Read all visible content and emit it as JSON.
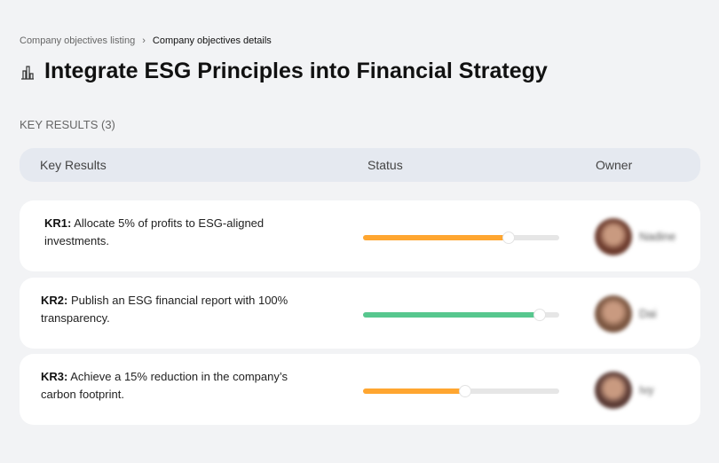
{
  "breadcrumb": {
    "parent": "Company objectives listing",
    "separator": "›",
    "current": "Company objectives details"
  },
  "page": {
    "title": "Integrate ESG Principles into Financial Strategy",
    "icon": "building-chart-icon"
  },
  "section_label": "KEY RESULTS (3)",
  "table": {
    "headers": [
      "Key Results",
      "Status",
      "Owner"
    ]
  },
  "key_results": [
    {
      "code": "KR1:",
      "text": "Allocate 5% of profits to ESG-aligned investments.",
      "progress": 74,
      "color": "#ffa630",
      "owner": "Nadine",
      "avatar_color": "#6b3a2c"
    },
    {
      "code": "KR2:",
      "text": "Publish an ESG financial report with 100% transparency.",
      "progress": 90,
      "color": "#57c78e",
      "owner": "Dai",
      "avatar_color": "#7a5540"
    },
    {
      "code": "KR3:",
      "text": "Achieve a 15% reduction in the company’s carbon footprint.",
      "progress": 52,
      "color": "#ffa630",
      "owner": "Ivy",
      "avatar_color": "#5a3a34"
    }
  ]
}
